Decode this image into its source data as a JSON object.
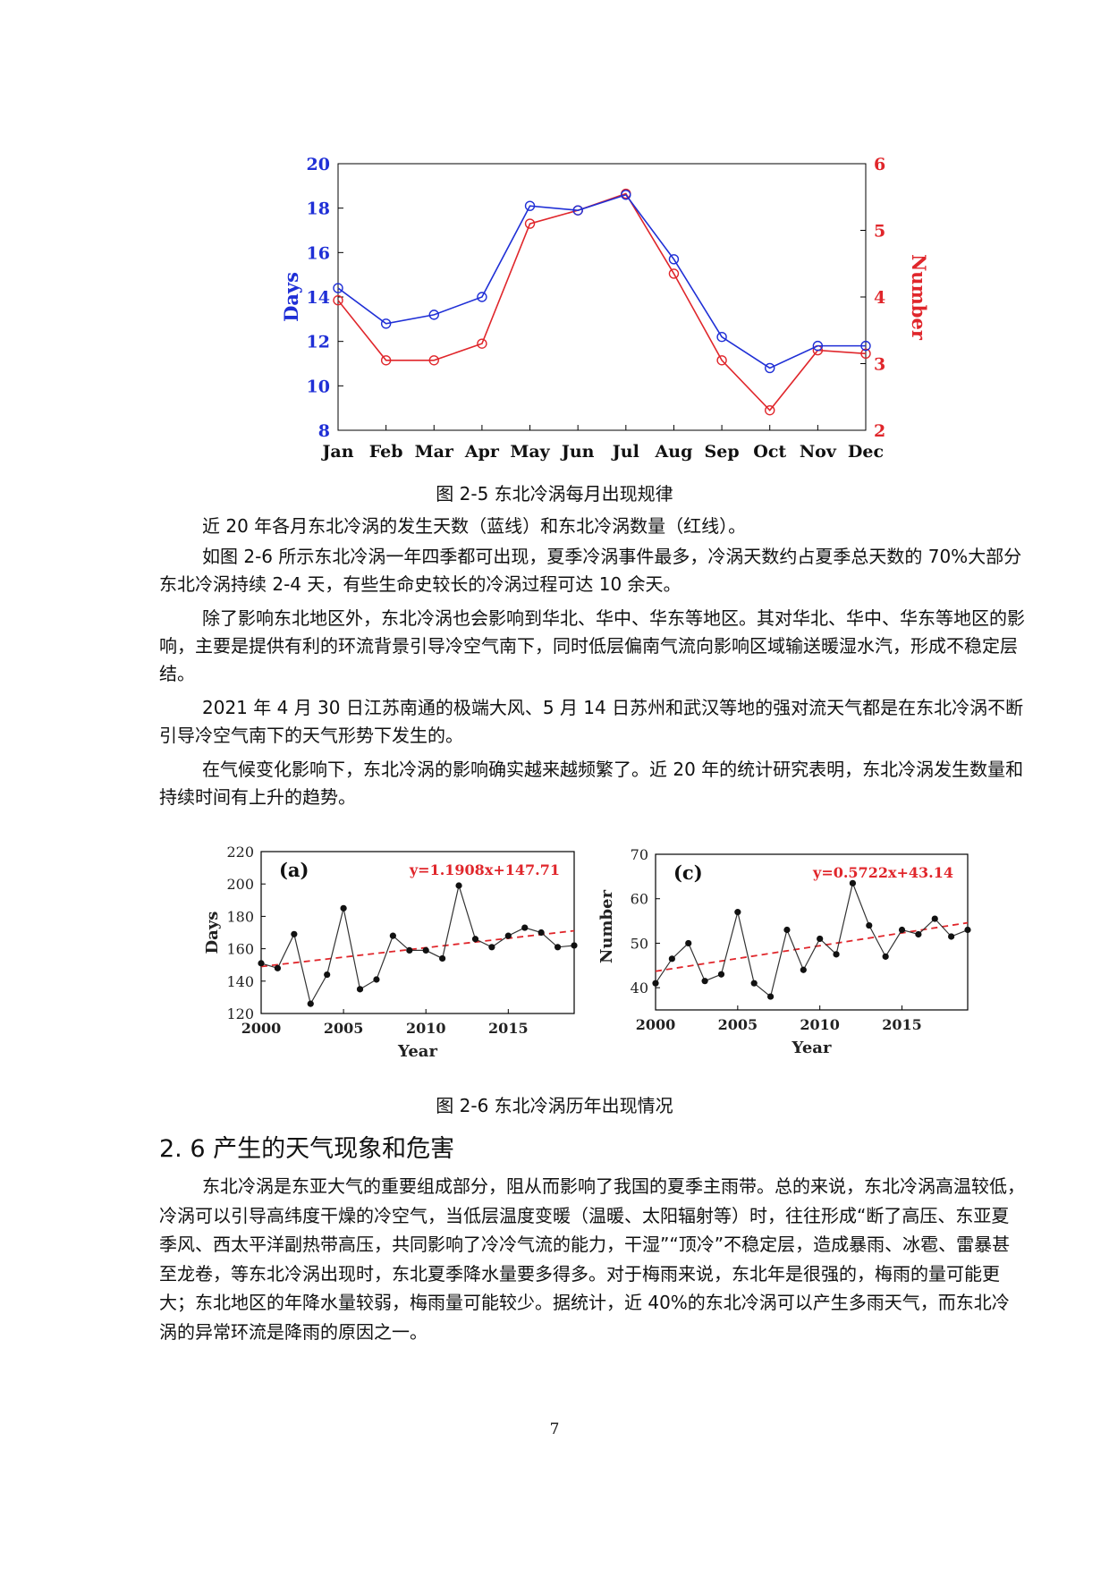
{
  "figure1": {
    "caption": "图 2-5  东北冷涡每月出现规律",
    "chart_data": {
      "type": "line",
      "categories": [
        "Jan",
        "Feb",
        "Mar",
        "Apr",
        "May",
        "Jun",
        "Jul",
        "Aug",
        "Sep",
        "Oct",
        "Nov",
        "Dec"
      ],
      "series": [
        {
          "name": "Days",
          "axis": "left",
          "color": "#1f2fd6",
          "values": [
            14.4,
            12.8,
            13.2,
            14.0,
            18.1,
            17.9,
            18.6,
            15.7,
            12.2,
            10.8,
            11.8,
            11.8
          ]
        },
        {
          "name": "Number",
          "axis": "right",
          "color": "#e0262b",
          "values": [
            3.95,
            3.05,
            3.05,
            3.3,
            5.1,
            5.3,
            5.55,
            4.35,
            3.05,
            2.3,
            3.2,
            3.15
          ]
        }
      ],
      "ylabel_left": "Days",
      "ylim_left": [
        8,
        20
      ],
      "yticks_left": [
        "8",
        "10",
        "12",
        "14",
        "16",
        "18",
        "20"
      ],
      "ylabel_right": "Number",
      "ylim_right": [
        2,
        6
      ],
      "yticks_right": [
        "2",
        "3",
        "4",
        "5",
        "6"
      ]
    }
  },
  "body1": [
    "近 20 年各月东北冷涡的发生天数（蓝线）和东北冷涡数量（红线）。",
    "如图 2-6 所示东北冷涡一年四季都可出现，夏季冷涡事件最多，冷涡天数约占夏季总天数的 70%大部分东北冷涡持续 2-4 天，有些生命史较长的冷涡过程可达 10 余天。",
    "除了影响东北地区外，东北冷涡也会影响到华北、华中、华东等地区。其对华北、华中、华东等地区的影响，主要是提供有利的环流背景引导冷空气南下，同时低层偏南气流向影响区域输送暖湿水汽，形成不稳定层结。",
    "2021 年 4 月 30 日江苏南通的极端大风、5 月 14 日苏州和武汉等地的强对流天气都是在东北冷涡不断引导冷空气南下的天气形势下发生的。",
    "在气候变化影响下，东北冷涡的影响确实越来越频繁了。近 20 年的统计研究表明，东北冷涡发生数量和持续时间有上升的趋势。"
  ],
  "figure2": {
    "caption": "图 2-6  东北冷涡历年出现情况",
    "chart_data": [
      {
        "type": "line",
        "panel": "(a)",
        "xlabel": "Year",
        "ylabel": "Days",
        "x": [
          2000,
          2001,
          2002,
          2003,
          2004,
          2005,
          2006,
          2007,
          2008,
          2009,
          2010,
          2011,
          2012,
          2013,
          2014,
          2015,
          2016,
          2017,
          2018,
          2019
        ],
        "values": [
          151,
          148,
          169,
          126,
          144,
          185,
          135,
          141,
          168,
          159,
          159,
          154,
          199,
          166,
          161,
          168,
          173,
          170,
          161,
          162
        ],
        "trend": "y=1.1908x+147.71",
        "trend_start": 149.0,
        "trend_end": 171.1,
        "xlim": [
          2000,
          2019
        ],
        "ylim": [
          120,
          220
        ],
        "xticks": [
          "2000",
          "2005",
          "2010",
          "2015"
        ],
        "yticks": [
          "120",
          "140",
          "160",
          "180",
          "200",
          "220"
        ]
      },
      {
        "type": "line",
        "panel": "(c)",
        "xlabel": "Year",
        "ylabel": "Number",
        "x": [
          2000,
          2001,
          2002,
          2003,
          2004,
          2005,
          2006,
          2007,
          2008,
          2009,
          2010,
          2011,
          2012,
          2013,
          2014,
          2015,
          2016,
          2017,
          2018,
          2019
        ],
        "values": [
          41,
          46.5,
          50,
          41.5,
          43,
          57,
          41,
          38,
          53,
          44,
          51,
          47.5,
          63.5,
          54,
          47,
          53,
          52,
          55.5,
          51.5,
          53
        ],
        "trend": "y=0.5722x+43.14",
        "trend_start": 43.7,
        "trend_end": 54.6,
        "xlim": [
          2000,
          2019
        ],
        "ylim": [
          35,
          70
        ],
        "xticks": [
          "2000",
          "2005",
          "2010",
          "2015"
        ],
        "yticks": [
          "40",
          "50",
          "60",
          "70"
        ]
      }
    ]
  },
  "section": {
    "heading": "2. 6 产生的天气现象和危害"
  },
  "body2": [
    "东北冷涡是东亚大气的重要组成部分，阻从而影响了我国的夏季主雨带。总的来说，东北冷涡高温较低，冷涡可以引导高纬度干燥的冷空气，当低层温度变暖（温暖、太阳辐射等）时，往往形成“断了高压、东亚夏季风、西太平洋副热带高压，共同影响了冷冷气流的能力，干湿”“顶冷”不稳定层，造成暴雨、冰雹、雷暴甚至龙卷，等东北冷涡出现时，东北夏季降水量要多得多。对于梅雨来说，东北年是很强的，梅雨的量可能更大；东北地区的年降水量较弱，梅雨量可能较少。据统计，近 40%的东北冷涡可以产生多雨天气，而东北冷涡的异常环流是降雨的原因之一。"
  ],
  "page_number": "7"
}
